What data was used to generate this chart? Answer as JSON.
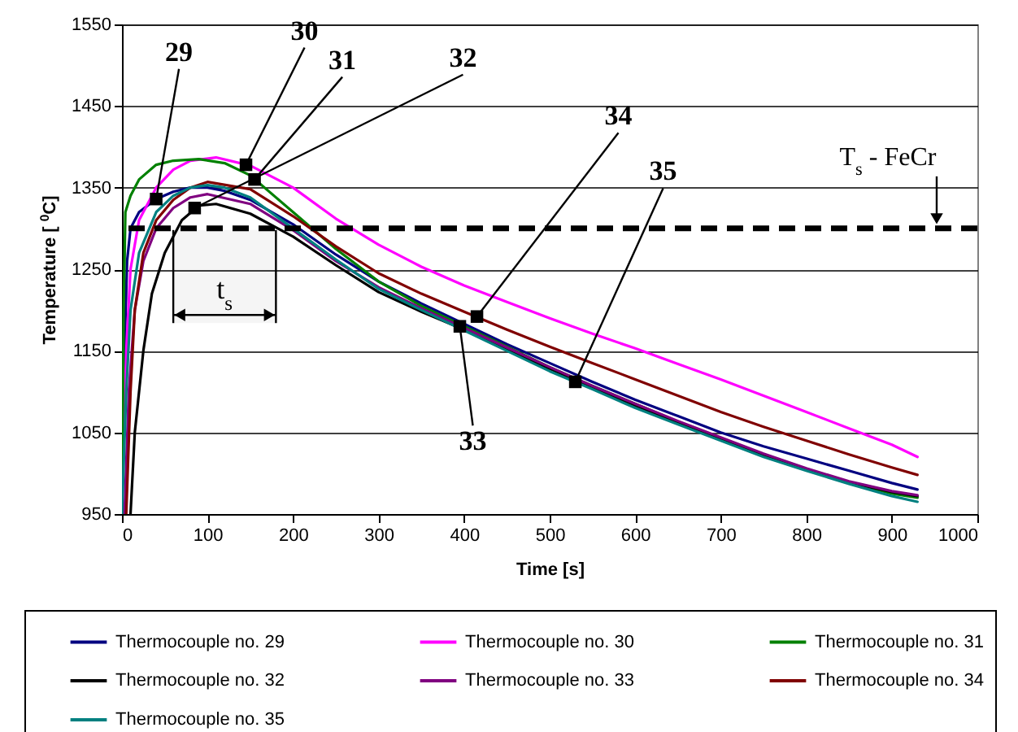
{
  "chart_data": {
    "type": "line",
    "xlabel": "Time [s]",
    "ylabel": "Temperature [ $^{0}$C]",
    "xlim": [
      0,
      1000
    ],
    "xticks": [
      0,
      100,
      200,
      300,
      400,
      500,
      600,
      700,
      800,
      900,
      1000
    ],
    "ylim": [
      950,
      1550
    ],
    "yticks": [
      950,
      1050,
      1150,
      1250,
      1350,
      1450,
      1550
    ],
    "grid": "y",
    "legend": "bottom",
    "series": [
      {
        "name": "Thermocouple no. 29",
        "color": "#000080",
        "x": [
          0,
          3,
          6,
          10,
          20,
          40,
          60,
          80,
          100,
          120,
          150,
          200,
          250,
          300,
          350,
          400,
          450,
          500,
          550,
          600,
          650,
          700,
          750,
          800,
          850,
          900,
          930
        ],
        "values": [
          950,
          1150,
          1260,
          1300,
          1320,
          1336,
          1345,
          1350,
          1350,
          1346,
          1335,
          1305,
          1268,
          1235,
          1208,
          1183,
          1158,
          1135,
          1112,
          1090,
          1070,
          1050,
          1033,
          1018,
          1003,
          988,
          980
        ]
      },
      {
        "name": "Thermocouple no. 30",
        "color": "#ff00ff",
        "x": [
          0,
          5,
          10,
          20,
          40,
          60,
          80,
          110,
          150,
          200,
          250,
          300,
          350,
          400,
          450,
          500,
          550,
          600,
          650,
          700,
          750,
          800,
          850,
          900,
          930
        ],
        "values": [
          950,
          1150,
          1250,
          1310,
          1350,
          1372,
          1383,
          1387,
          1377,
          1350,
          1312,
          1280,
          1253,
          1230,
          1210,
          1190,
          1171,
          1153,
          1134,
          1115,
          1095,
          1075,
          1055,
          1035,
          1020
        ]
      },
      {
        "name": "Thermocouple no. 31",
        "color": "#008000",
        "x": [
          0,
          2,
          4,
          10,
          20,
          40,
          60,
          90,
          120,
          150,
          200,
          250,
          300,
          350,
          400,
          450,
          500,
          550,
          600,
          650,
          700,
          750,
          800,
          850,
          900,
          930
        ],
        "values": [
          950,
          1200,
          1320,
          1340,
          1360,
          1378,
          1383,
          1385,
          1380,
          1365,
          1320,
          1275,
          1235,
          1205,
          1180,
          1155,
          1130,
          1107,
          1085,
          1063,
          1043,
          1023,
          1005,
          989,
          975,
          970
        ]
      },
      {
        "name": "Thermocouple no. 32",
        "color": "#000000",
        "x": [
          10,
          15,
          25,
          35,
          50,
          70,
          90,
          110,
          150,
          200,
          250,
          300,
          350,
          400,
          450,
          500,
          550,
          600,
          650,
          700,
          750,
          800,
          850,
          900,
          930
        ],
        "values": [
          950,
          1050,
          1150,
          1220,
          1270,
          1310,
          1328,
          1330,
          1318,
          1290,
          1255,
          1222,
          1198,
          1176,
          1152,
          1128,
          1105,
          1083,
          1062,
          1042,
          1022,
          1005,
          989,
          977,
          972
        ]
      },
      {
        "name": "Thermocouple no. 33",
        "color": "#800080",
        "x": [
          3,
          8,
          15,
          25,
          40,
          60,
          80,
          100,
          150,
          200,
          250,
          300,
          350,
          400,
          450,
          500,
          550,
          600,
          650,
          700,
          750,
          800,
          850,
          900,
          930
        ],
        "values": [
          950,
          1100,
          1200,
          1260,
          1300,
          1325,
          1338,
          1342,
          1330,
          1298,
          1260,
          1228,
          1202,
          1178,
          1154,
          1130,
          1107,
          1085,
          1064,
          1044,
          1024,
          1006,
          990,
          978,
          973
        ]
      },
      {
        "name": "Thermocouple no. 34",
        "color": "#800000",
        "x": [
          5,
          10,
          15,
          25,
          40,
          60,
          80,
          100,
          150,
          200,
          250,
          300,
          350,
          400,
          450,
          500,
          550,
          600,
          650,
          700,
          750,
          800,
          850,
          900,
          930
        ],
        "values": [
          950,
          1100,
          1200,
          1270,
          1310,
          1335,
          1350,
          1357,
          1348,
          1315,
          1278,
          1245,
          1220,
          1198,
          1176,
          1155,
          1135,
          1115,
          1095,
          1075,
          1057,
          1040,
          1023,
          1007,
          998
        ]
      },
      {
        "name": "Thermocouple no. 35",
        "color": "#008080",
        "x": [
          0,
          5,
          10,
          20,
          40,
          60,
          80,
          100,
          120,
          150,
          200,
          250,
          300,
          350,
          400,
          450,
          500,
          550,
          600,
          650,
          700,
          750,
          800,
          850,
          900,
          930
        ],
        "values": [
          950,
          1100,
          1200,
          1270,
          1320,
          1340,
          1350,
          1353,
          1350,
          1338,
          1300,
          1262,
          1226,
          1200,
          1175,
          1150,
          1125,
          1103,
          1080,
          1060,
          1040,
          1020,
          1003,
          987,
          972,
          965
        ]
      }
    ],
    "ref_lines": [
      {
        "axis": "y",
        "value": 1300,
        "label": "T$_{s}$ - FeCr",
        "line_style": "dashed",
        "color": "#000000"
      }
    ],
    "bands": [
      {
        "axis": "x",
        "from": 60,
        "to": 180,
        "label": "t$_{s}$"
      }
    ],
    "annotations": [
      {
        "text": "29",
        "x": 40,
        "y": 1336
      },
      {
        "text": "30",
        "x": 145,
        "y": 1378
      },
      {
        "text": "31",
        "x": 155,
        "y": 1360
      },
      {
        "text": "32",
        "x": 85,
        "y": 1325
      },
      {
        "text": "33",
        "x": 395,
        "y": 1180
      },
      {
        "text": "34",
        "x": 415,
        "y": 1192
      },
      {
        "text": "35",
        "x": 530,
        "y": 1112
      }
    ]
  }
}
